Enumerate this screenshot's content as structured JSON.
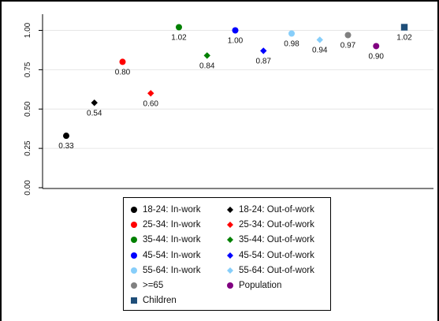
{
  "chart_data": {
    "type": "scatter",
    "title": "",
    "xlabel": "",
    "ylabel": "",
    "ylim": [
      0,
      1.05
    ],
    "yticks": [
      0.0,
      0.25,
      0.5,
      0.75,
      1.0
    ],
    "ytick_labels": [
      "0.00",
      "0.25",
      "0.50",
      "0.75",
      "1.00"
    ],
    "grid": "horizontal",
    "legend_position": "bottom",
    "series": [
      {
        "name": "18-24: In-work",
        "marker": "circle",
        "color": "#000000",
        "x": 1,
        "value": 0.33,
        "label": "0.33"
      },
      {
        "name": "18-24: Out-of-work",
        "marker": "diamond",
        "color": "#000000",
        "x": 2,
        "value": 0.54,
        "label": "0.54"
      },
      {
        "name": "25-34: In-work",
        "marker": "circle",
        "color": "#ff0000",
        "x": 3,
        "value": 0.8,
        "label": "0.80"
      },
      {
        "name": "25-34: Out-of-work",
        "marker": "diamond",
        "color": "#ff0000",
        "x": 4,
        "value": 0.6,
        "label": "0.60"
      },
      {
        "name": "35-44: In-work",
        "marker": "circle",
        "color": "#008000",
        "x": 5,
        "value": 1.02,
        "label": "1.02"
      },
      {
        "name": "35-44: Out-of-work",
        "marker": "diamond",
        "color": "#008000",
        "x": 6,
        "value": 0.84,
        "label": "0.84"
      },
      {
        "name": "45-54: In-work",
        "marker": "circle",
        "color": "#0000ff",
        "x": 7,
        "value": 1.0,
        "label": "1.00"
      },
      {
        "name": "45-54: Out-of-work",
        "marker": "diamond",
        "color": "#0000ff",
        "x": 8,
        "value": 0.87,
        "label": "0.87"
      },
      {
        "name": "55-64: In-work",
        "marker": "circle",
        "color": "#87cefa",
        "x": 9,
        "value": 0.98,
        "label": "0.98"
      },
      {
        "name": "55-64: Out-of-work",
        "marker": "diamond",
        "color": "#87cefa",
        "x": 10,
        "value": 0.94,
        "label": "0.94"
      },
      {
        "name": ">=65",
        "marker": "circle",
        "color": "#808080",
        "x": 11,
        "value": 0.97,
        "label": "0.97"
      },
      {
        "name": "Population",
        "marker": "circle",
        "color": "#800080",
        "x": 12,
        "value": 0.9,
        "label": "0.90"
      },
      {
        "name": "Children",
        "marker": "square",
        "color": "#1f4e79",
        "x": 13,
        "value": 1.02,
        "label": "1.02"
      }
    ]
  }
}
